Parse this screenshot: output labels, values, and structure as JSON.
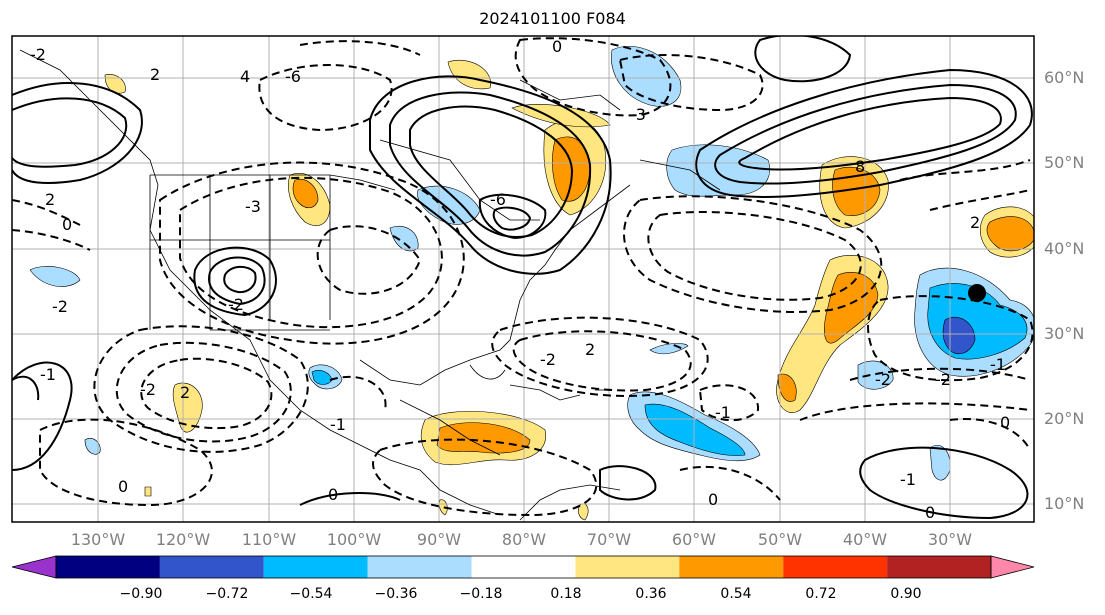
{
  "title": "2024101100 F084",
  "map": {
    "lat_labels": [
      "60°N",
      "50°N",
      "40°N",
      "30°N",
      "20°N",
      "10°N"
    ],
    "lon_labels": [
      "130°W",
      "120°W",
      "110°W",
      "100°W",
      "90°W",
      "80°W",
      "70°W",
      "60°W",
      "50°W",
      "40°W",
      "30°W"
    ],
    "contour_labels": [
      "-2",
      "2",
      "4",
      "-6",
      "2",
      "-3",
      "-2",
      "0",
      "-2",
      "2",
      "0",
      "-1",
      "-2",
      "0",
      "-6",
      "8",
      "2",
      "-2",
      "-1",
      "0",
      "-3",
      "0",
      "-2",
      "-1",
      "-2",
      "2",
      "0",
      "0",
      "-1",
      "-1"
    ],
    "marker": "storm-center"
  },
  "colorbar": {
    "ticks": [
      "−0.90",
      "−0.72",
      "−0.54",
      "−0.36",
      "−0.18",
      "0.18",
      "0.36",
      "0.54",
      "0.72",
      "0.90"
    ],
    "colors": [
      "#9933cc",
      "#000080",
      "#3355cc",
      "#00bbff",
      "#aaddff",
      "#ffffff",
      "#ffe680",
      "#ff9900",
      "#ff3300",
      "#b22222",
      "#ff88aa"
    ]
  }
}
